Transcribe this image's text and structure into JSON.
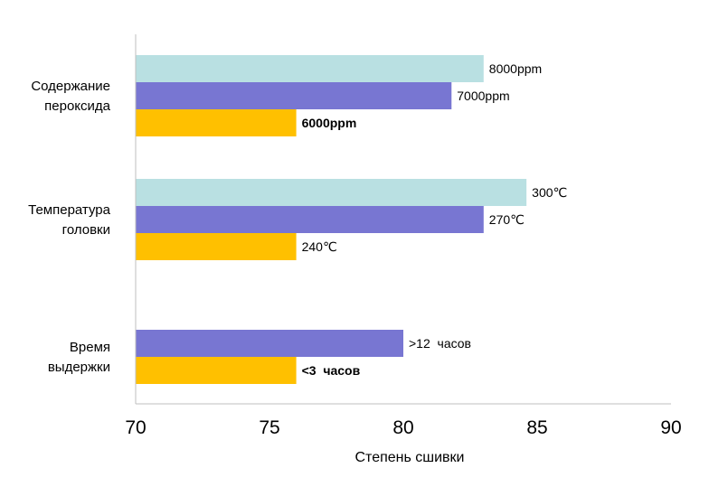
{
  "chart_data": {
    "type": "bar",
    "orientation": "horizontal",
    "title": "",
    "xlabel": "Степень сшивки",
    "ylabel": "",
    "xlim": [
      70,
      90
    ],
    "xticks": [
      "70",
      "75",
      "80",
      "85",
      "90"
    ],
    "grid": false,
    "legend": "none",
    "colors": [
      "#b9e0e2",
      "#7876d2",
      "#ffc000"
    ],
    "groups": [
      {
        "label_lines": [
          "Содержание",
          "пероксида"
        ],
        "bars": [
          {
            "value": 83,
            "label": "8000ppm",
            "color": "#b9e0e2",
            "bold": false
          },
          {
            "value": 81.8,
            "label": "7000ppm",
            "color": "#7876d2",
            "bold": false
          },
          {
            "value": 76,
            "label": "6000ppm",
            "color": "#ffc000",
            "bold": true
          }
        ]
      },
      {
        "label_lines": [
          "Температура",
          "головки"
        ],
        "bars": [
          {
            "value": 84.6,
            "label": "300℃",
            "color": "#b9e0e2",
            "bold": false
          },
          {
            "value": 83,
            "label": "270℃",
            "color": "#7876d2",
            "bold": false
          },
          {
            "value": 76,
            "label": "240℃",
            "color": "#ffc000",
            "bold": false
          }
        ]
      },
      {
        "label_lines": [
          "Время",
          "выдержки"
        ],
        "bars": [
          {
            "value": 80,
            "label": ">12  часов",
            "color": "#7876d2",
            "bold": false
          },
          {
            "value": 76,
            "label": "<3  часов",
            "color": "#ffc000",
            "bold": true
          }
        ]
      }
    ]
  }
}
